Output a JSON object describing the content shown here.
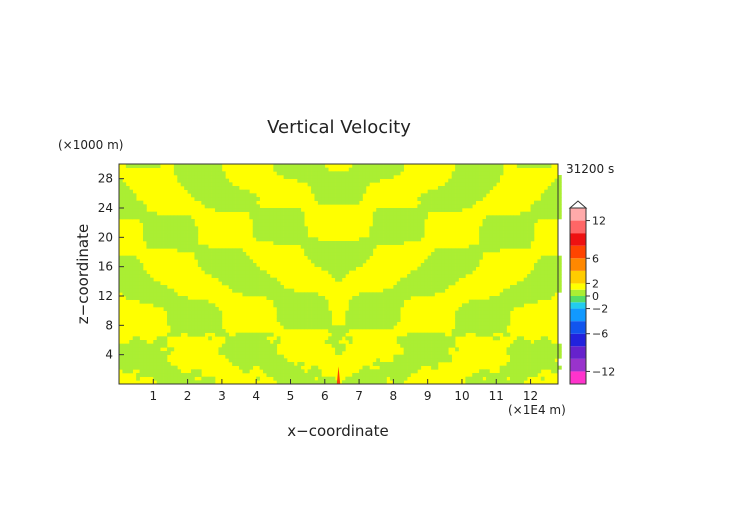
{
  "chart_data": {
    "type": "heatmap",
    "title": "Vertical Velocity",
    "xlabel": "x−coordinate",
    "ylabel": "z−coordinate",
    "x_unit": "(×1E4 m)",
    "y_unit": "(×1000 m)",
    "time_label": "31200 s",
    "xlim": [
      0,
      12.8
    ],
    "ylim": [
      0,
      30
    ],
    "x_ticks": [
      "1",
      "2",
      "3",
      "4",
      "5",
      "6",
      "7",
      "8",
      "9",
      "10",
      "11",
      "12"
    ],
    "y_ticks": [
      "4",
      "8",
      "12",
      "16",
      "20",
      "24",
      "28"
    ],
    "colorbar": {
      "range": [
        -14,
        14
      ],
      "tick_labels": [
        "12",
        "6",
        "2",
        "0",
        "−2",
        "−6",
        "−12"
      ],
      "levels": [
        {
          "lo": -14,
          "hi": -12,
          "color": "#ff33cc"
        },
        {
          "lo": -12,
          "hi": -10,
          "color": "#9933cc"
        },
        {
          "lo": -10,
          "hi": -8,
          "color": "#6622cc"
        },
        {
          "lo": -8,
          "hi": -6,
          "color": "#2222dd"
        },
        {
          "lo": -6,
          "hi": -4,
          "color": "#1155ee"
        },
        {
          "lo": -4,
          "hi": -2,
          "color": "#1199ff"
        },
        {
          "lo": -2,
          "hi": -1,
          "color": "#22ccee"
        },
        {
          "lo": -1,
          "hi": 0,
          "color": "#55dd66"
        },
        {
          "lo": 0,
          "hi": 1,
          "color": "#aaee33"
        },
        {
          "lo": 1,
          "hi": 2,
          "color": "#ffff00"
        },
        {
          "lo": 2,
          "hi": 4,
          "color": "#ffcc00"
        },
        {
          "lo": 4,
          "hi": 6,
          "color": "#ff8800"
        },
        {
          "lo": 6,
          "hi": 8,
          "color": "#ff4400"
        },
        {
          "lo": 8,
          "hi": 10,
          "color": "#ee1111"
        },
        {
          "lo": 10,
          "hi": 12,
          "color": "#ff6666"
        },
        {
          "lo": 12,
          "hi": 14,
          "color": "#ffaaaa"
        }
      ]
    },
    "field_colors": {
      "positive": "#ffff00",
      "negative": "#aaee33",
      "peak": "#ff4400"
    }
  }
}
